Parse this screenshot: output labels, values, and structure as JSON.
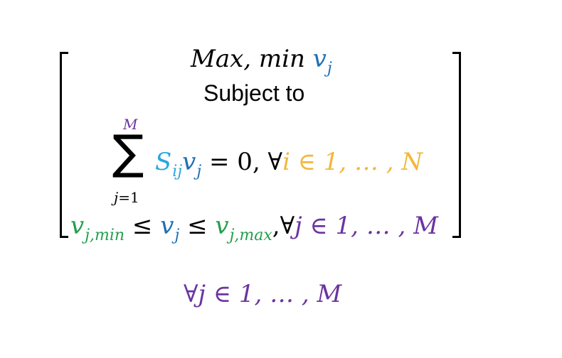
{
  "objective": {
    "prefix": "Max, min ",
    "var": "v",
    "var_sub": "j"
  },
  "subject_to": "Subject to",
  "summation": {
    "upper": "M",
    "sigma": "∑",
    "lower_var": "j",
    "lower_rest": "=1",
    "coef": "S",
    "coef_sub": "ij",
    "var": "v",
    "var_sub": "j",
    "equals": " = 0, ∀",
    "index_expr": "i ∈ 1, … , N"
  },
  "bounds": {
    "lower_var": "v",
    "lower_sub": "j,min",
    "leq1": " ≤ ",
    "mid_var": "v",
    "mid_sub": "j",
    "leq2": " ≤ ",
    "upper_var": "v",
    "upper_sub": "j,max",
    "forall": ",∀",
    "index_expr": "j ∈ 1, … , M"
  },
  "bottom": {
    "forall": "∀",
    "index_expr": "j ∈ 1, … , M"
  },
  "colors": {
    "blue": "#1f6fb4",
    "cyan": "#2aa7df",
    "green": "#22a04b",
    "orange": "#f2b83a",
    "purple": "#6b34a0",
    "black": "#000000"
  }
}
